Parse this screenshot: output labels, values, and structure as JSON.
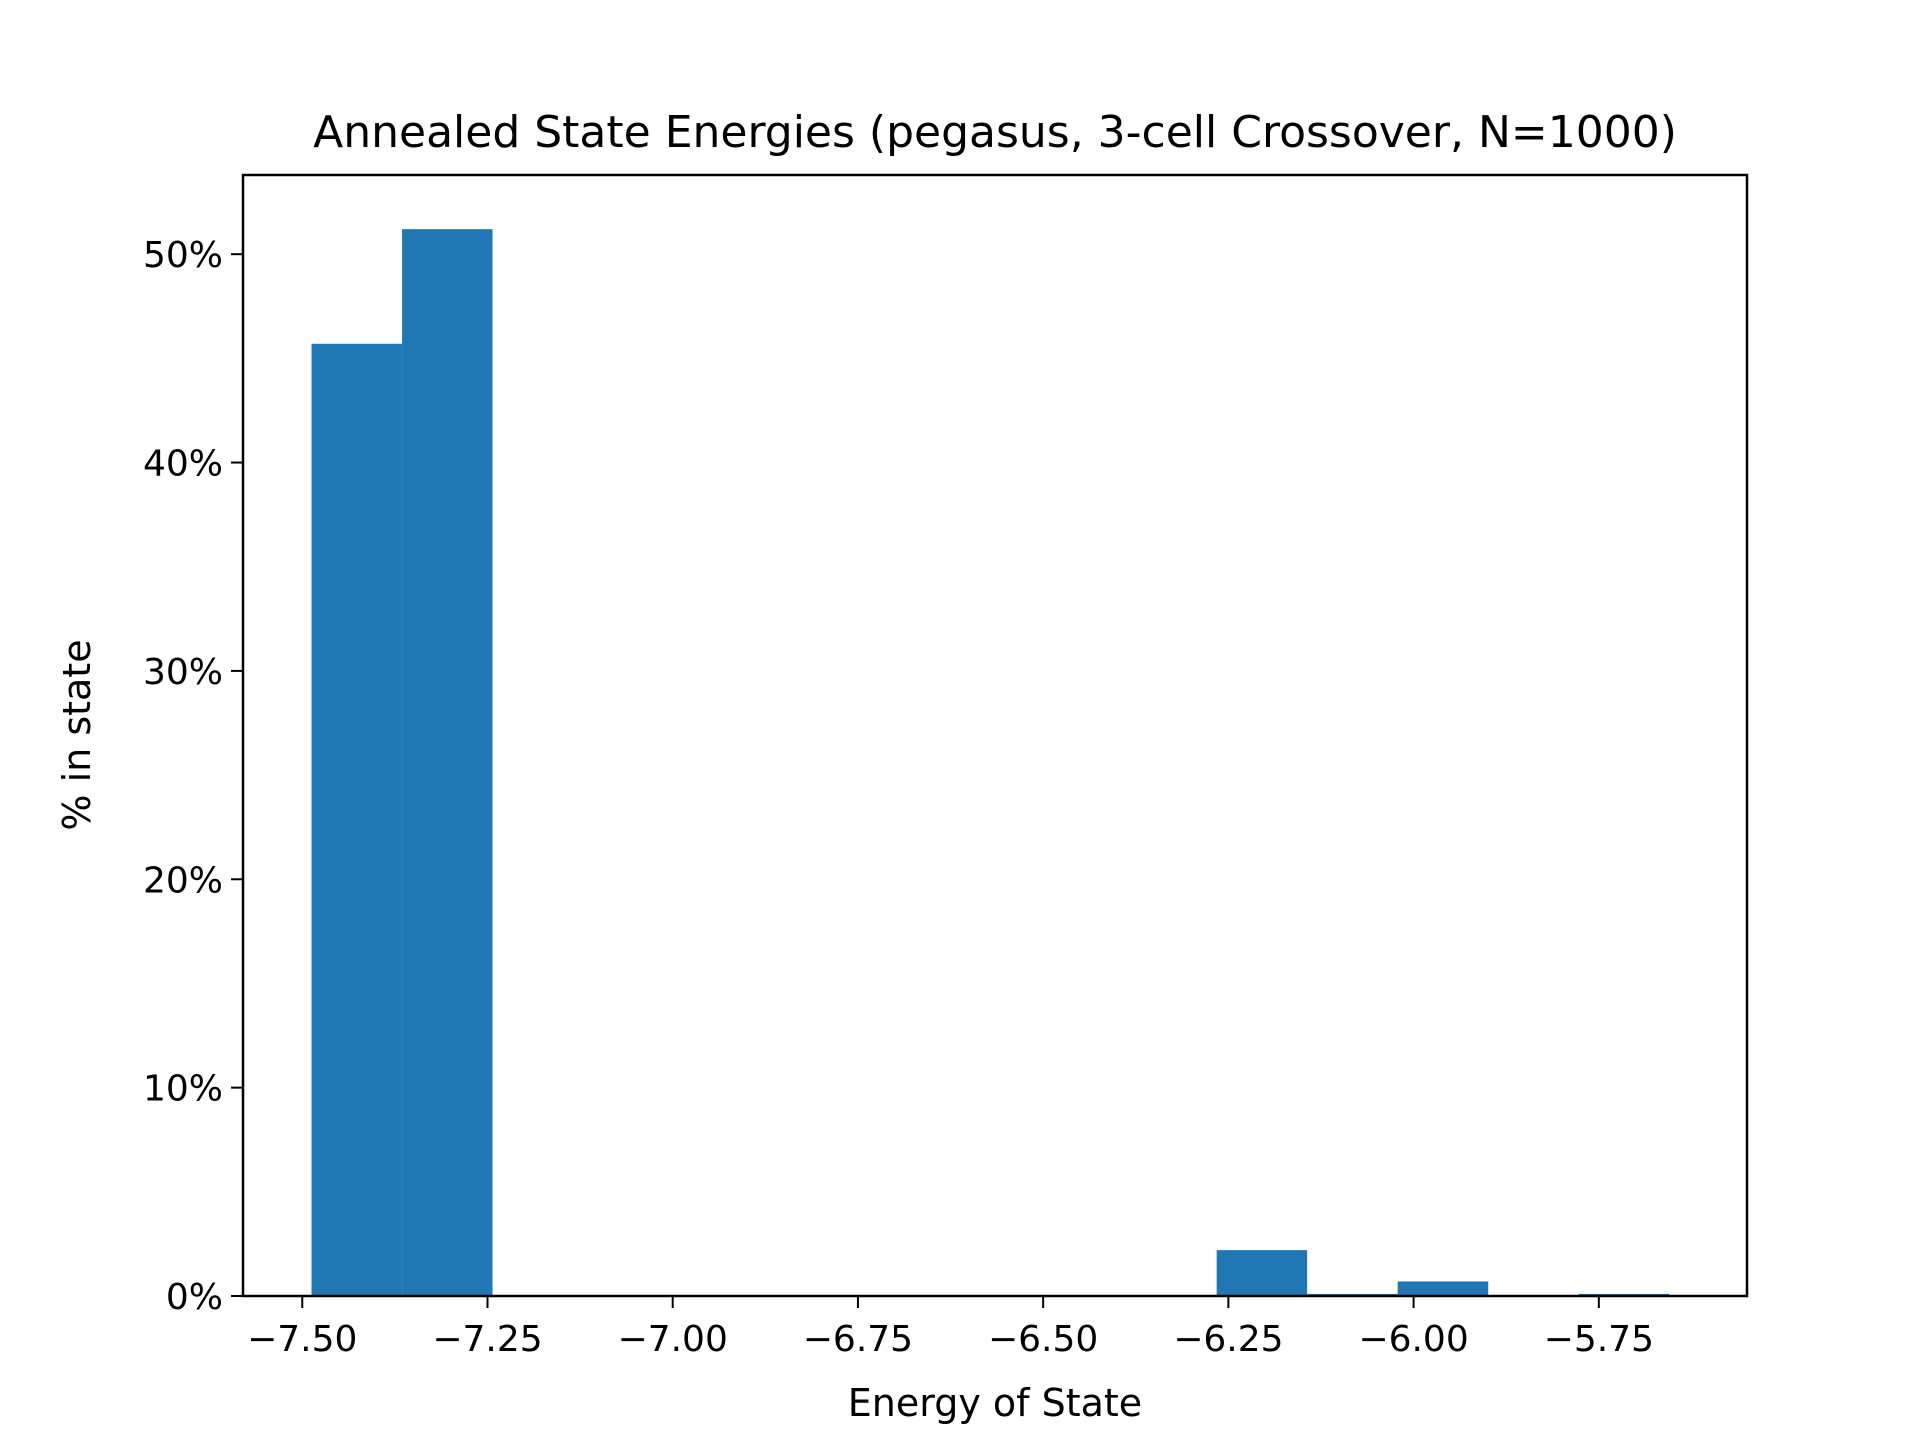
{
  "chart_data": {
    "type": "bar",
    "title": "Annealed State Energies (pegasus, 3-cell Crossover, N=1000)",
    "xlabel": "Energy of State",
    "ylabel": "% in state",
    "xlim": [
      -7.58,
      -5.55
    ],
    "ylim": [
      0,
      53.8
    ],
    "x_ticks": [
      -7.5,
      -7.25,
      -7.0,
      -6.75,
      -6.5,
      -6.25,
      -6.0,
      -5.75
    ],
    "x_tick_labels": [
      "−7.50",
      "−7.25",
      "−7.00",
      "−6.75",
      "−6.50",
      "−6.25",
      "−6.00",
      "−5.75"
    ],
    "y_ticks": [
      0,
      10,
      20,
      30,
      40,
      50
    ],
    "y_tick_labels": [
      "0%",
      "10%",
      "20%",
      "30%",
      "40%",
      "50%"
    ],
    "bin_edges": [
      -7.4875,
      -7.3653,
      -7.2432,
      -7.121,
      -6.9988,
      -6.8767,
      -6.7545,
      -6.6323,
      -6.5102,
      -6.388,
      -6.2658,
      -6.1437,
      -6.0215,
      -5.8993,
      -5.7772,
      -5.655
    ],
    "values": [
      45.7,
      51.2,
      0,
      0,
      0,
      0,
      0,
      0,
      0,
      0,
      2.2,
      0.1,
      0.7,
      0,
      0.1
    ],
    "grid": false,
    "colors": {
      "bar": "#2077b4",
      "axis": "#000000",
      "background": "#ffffff"
    }
  }
}
